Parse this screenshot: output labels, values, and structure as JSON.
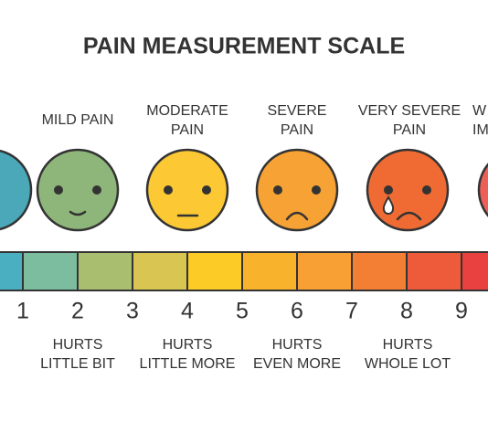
{
  "header": {
    "title": "PAIN MEASUREMENT SCALE"
  },
  "faces": [
    {
      "label": [
        "MILD PAIN"
      ]
    },
    {
      "label": [
        "MODERATE",
        "PAIN"
      ]
    },
    {
      "label": [
        "SEVERE",
        "PAIN"
      ]
    },
    {
      "label": [
        "VERY SEVERE",
        "PAIN"
      ]
    },
    {
      "label": [
        "W",
        "IM"
      ]
    }
  ],
  "scale": {
    "numbers": [
      "1",
      "2",
      "3",
      "4",
      "5",
      "6",
      "7",
      "8",
      "9"
    ]
  },
  "descriptions": [
    [
      "HURTS",
      "LITTLE BIT"
    ],
    [
      "HURTS",
      "LITTLE MORE"
    ],
    [
      "HURTS",
      "EVEN MORE"
    ],
    [
      "HURTS",
      "WHOLE LOT"
    ]
  ]
}
